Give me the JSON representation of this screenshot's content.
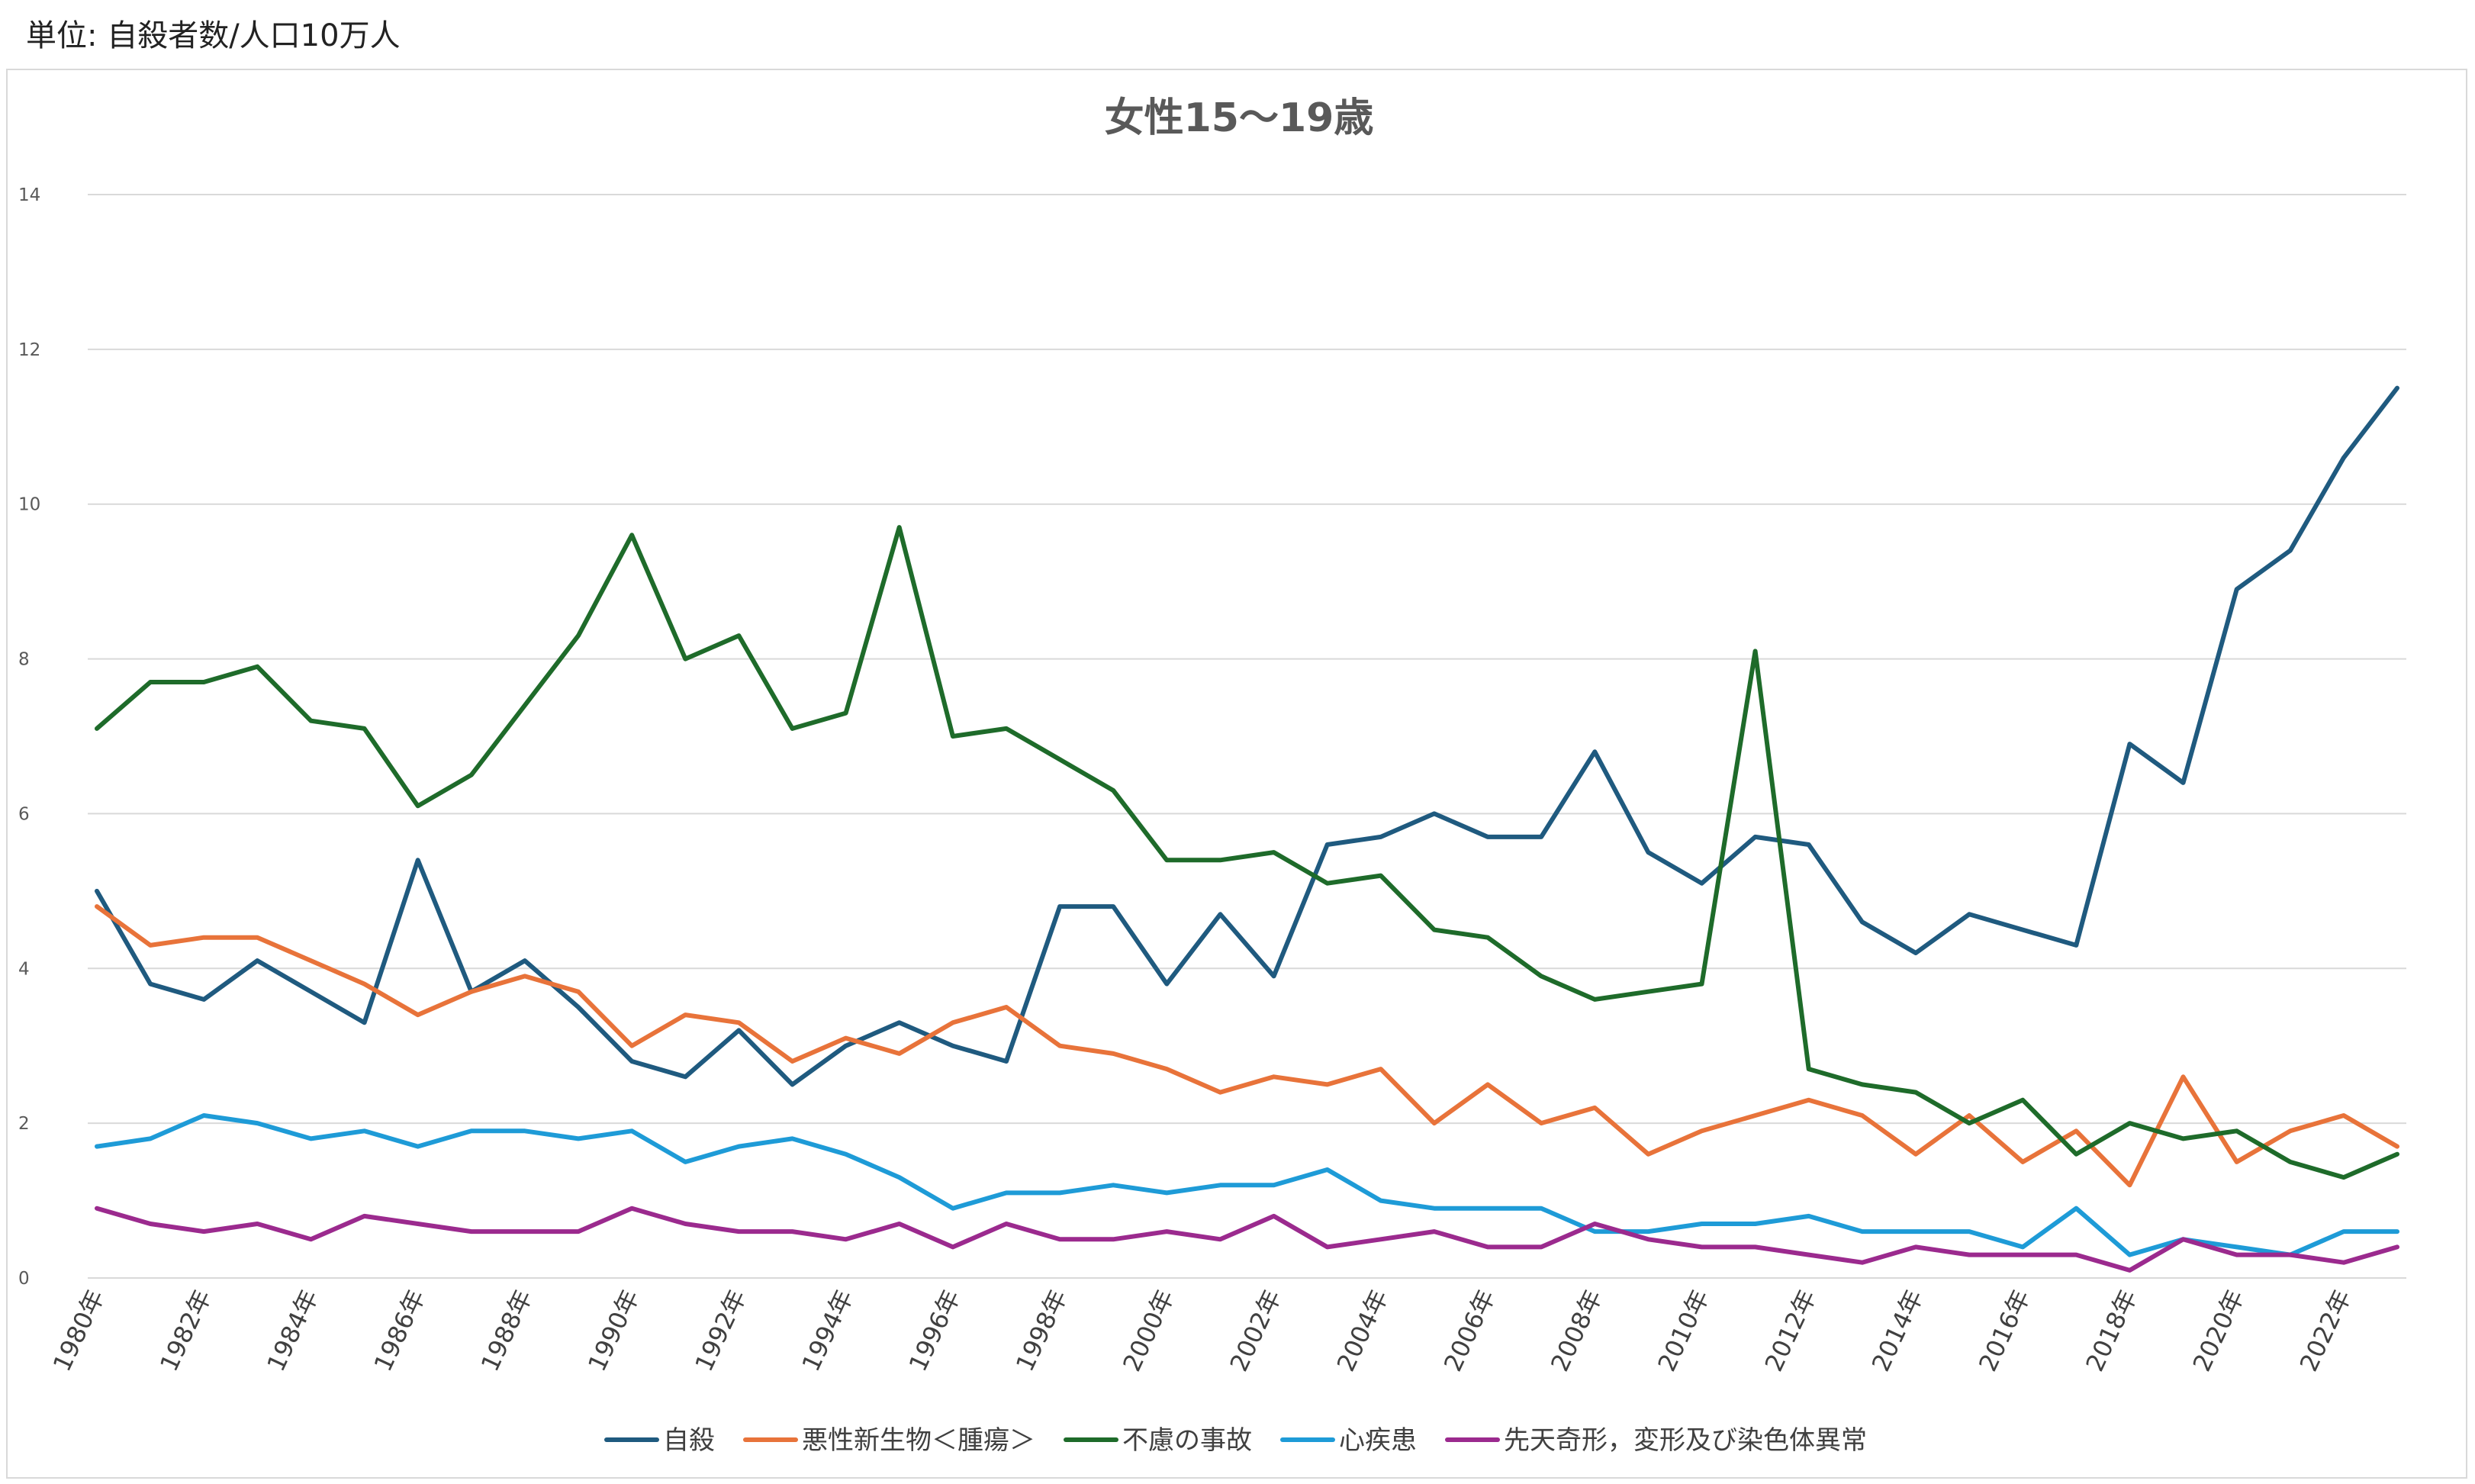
{
  "unit_label": "単位: 自殺者数/人口10万人",
  "chart_data": {
    "type": "line",
    "title": "女性15〜19歳",
    "xlabel": "",
    "ylabel": "",
    "ylim": [
      0,
      14
    ],
    "yticks": [
      0,
      2,
      4,
      6,
      8,
      10,
      12,
      14
    ],
    "grid": true,
    "legend_position": "bottom",
    "x": [
      "1980年",
      "1981年",
      "1982年",
      "1983年",
      "1984年",
      "1985年",
      "1986年",
      "1987年",
      "1988年",
      "1989年",
      "1990年",
      "1991年",
      "1992年",
      "1993年",
      "1994年",
      "1995年",
      "1996年",
      "1997年",
      "1998年",
      "1999年",
      "2000年",
      "2001年",
      "2002年",
      "2003年",
      "2004年",
      "2005年",
      "2006年",
      "2007年",
      "2008年",
      "2009年",
      "2010年",
      "2011年",
      "2012年",
      "2013年",
      "2014年",
      "2015年",
      "2016年",
      "2017年",
      "2018年",
      "2019年",
      "2020年",
      "2021年",
      "2022年",
      "2023年"
    ],
    "x_tick_labels": [
      "1980年",
      "1982年",
      "1984年",
      "1986年",
      "1988年",
      "1990年",
      "1992年",
      "1994年",
      "1996年",
      "1998年",
      "2000年",
      "2002年",
      "2004年",
      "2006年",
      "2008年",
      "2010年",
      "2012年",
      "2014年",
      "2016年",
      "2018年",
      "2020年",
      "2022年"
    ],
    "series": [
      {
        "name": "自殺",
        "color": "#1f5a7f",
        "values": [
          5.0,
          3.8,
          3.6,
          4.1,
          3.7,
          3.3,
          5.4,
          3.7,
          4.1,
          3.5,
          2.8,
          2.6,
          3.2,
          2.5,
          3.0,
          3.3,
          3.0,
          2.8,
          4.8,
          4.8,
          3.8,
          4.7,
          3.9,
          5.6,
          5.7,
          6.0,
          5.7,
          5.7,
          6.8,
          5.5,
          5.1,
          5.7,
          5.6,
          4.6,
          4.2,
          4.7,
          4.5,
          4.3,
          6.9,
          6.4,
          8.9,
          9.4,
          10.6,
          11.5
        ]
      },
      {
        "name": "悪性新生物＜腫瘍＞",
        "color": "#e8733a",
        "values": [
          4.8,
          4.3,
          4.4,
          4.4,
          4.1,
          3.8,
          3.4,
          3.7,
          3.9,
          3.7,
          3.0,
          3.4,
          3.3,
          2.8,
          3.1,
          2.9,
          3.3,
          3.5,
          3.0,
          2.9,
          2.7,
          2.4,
          2.6,
          2.5,
          2.7,
          2.0,
          2.5,
          2.0,
          2.2,
          1.6,
          1.9,
          2.1,
          2.3,
          2.1,
          1.6,
          2.1,
          1.5,
          1.9,
          1.2,
          2.6,
          1.5,
          1.9,
          2.1,
          1.7
        ]
      },
      {
        "name": "不慮の事故",
        "color": "#1e6b2a",
        "values": [
          7.1,
          7.7,
          7.7,
          7.9,
          7.2,
          7.1,
          6.1,
          6.5,
          7.4,
          8.3,
          9.6,
          8.0,
          8.3,
          7.1,
          7.3,
          9.7,
          7.0,
          7.1,
          6.7,
          6.3,
          5.4,
          5.4,
          5.5,
          5.1,
          5.2,
          4.5,
          4.4,
          3.9,
          3.6,
          3.7,
          3.8,
          8.1,
          2.7,
          2.5,
          2.4,
          2.0,
          2.3,
          1.6,
          2.0,
          1.8,
          1.9,
          1.5,
          1.3,
          1.6
        ]
      },
      {
        "name": "心疾患",
        "color": "#1e9bd7",
        "values": [
          1.7,
          1.8,
          2.1,
          2.0,
          1.8,
          1.9,
          1.7,
          1.9,
          1.9,
          1.8,
          1.9,
          1.5,
          1.7,
          1.8,
          1.6,
          1.3,
          0.9,
          1.1,
          1.1,
          1.2,
          1.1,
          1.2,
          1.2,
          1.4,
          1.0,
          0.9,
          0.9,
          0.9,
          0.6,
          0.6,
          0.7,
          0.7,
          0.8,
          0.6,
          0.6,
          0.6,
          0.4,
          0.9,
          0.3,
          0.5,
          0.4,
          0.3,
          0.6,
          0.6
        ]
      },
      {
        "name": "先天奇形，変形及び染色体異常",
        "color": "#9b2a8e",
        "values": [
          0.9,
          0.7,
          0.6,
          0.7,
          0.5,
          0.8,
          0.7,
          0.6,
          0.6,
          0.6,
          0.9,
          0.7,
          0.6,
          0.6,
          0.5,
          0.7,
          0.4,
          0.7,
          0.5,
          0.5,
          0.6,
          0.5,
          0.8,
          0.4,
          0.5,
          0.6,
          0.4,
          0.4,
          0.7,
          0.5,
          0.4,
          0.4,
          0.3,
          0.2,
          0.4,
          0.3,
          0.3,
          0.3,
          0.1,
          0.5,
          0.3,
          0.3,
          0.2,
          0.4
        ]
      }
    ]
  }
}
